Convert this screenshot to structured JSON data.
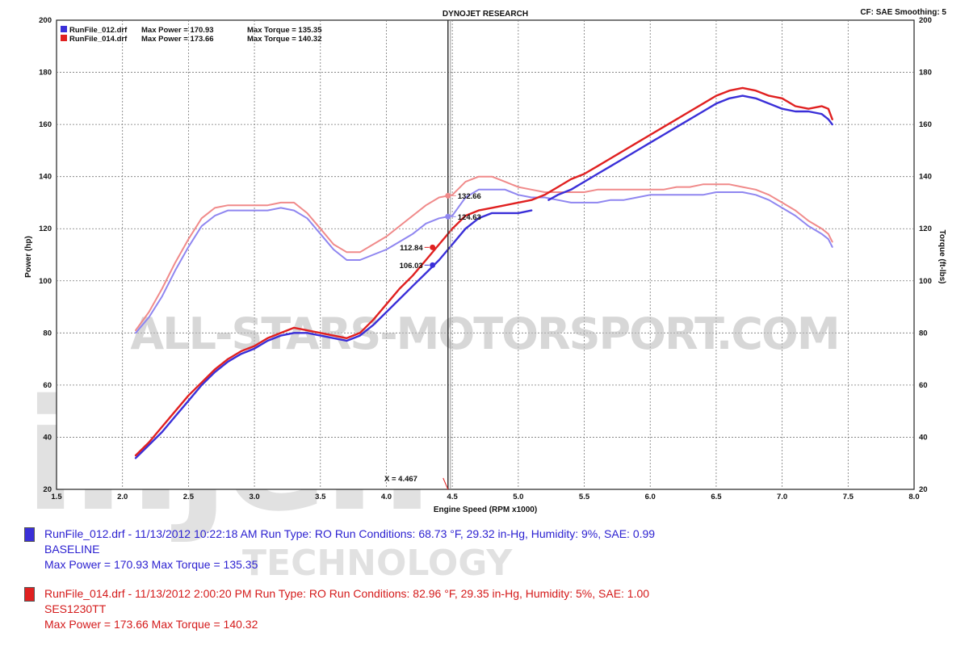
{
  "chart_data": {
    "type": "line",
    "title": "DYNOJET RESEARCH",
    "corner_info": "CF: SAE  Smoothing: 5",
    "xlabel": "Engine Speed (RPM x1000)",
    "ylabel_left": "Power (hp)",
    "ylabel_right": "Torque (ft-lbs)",
    "xlim": [
      1.5,
      8.0
    ],
    "ylim": [
      20,
      200
    ],
    "x_ticks": [
      "1.5",
      "2.0",
      "2.5",
      "3.0",
      "3.5",
      "4.0",
      "4.5",
      "5.0",
      "5.5",
      "6.0",
      "6.5",
      "7.0",
      "7.5",
      "8.0"
    ],
    "y_ticks": [
      "20",
      "40",
      "60",
      "80",
      "100",
      "120",
      "140",
      "160",
      "180",
      "200"
    ],
    "grid": true,
    "legend_top": [
      {
        "file": "RunFile_012.drf",
        "power": "Max Power = 170.93",
        "torque": "Max Torque = 135.35",
        "color": "#3a2fd8"
      },
      {
        "file": "RunFile_014.drf",
        "power": "Max Power = 173.66",
        "torque": "Max Torque = 140.32",
        "color": "#e02020"
      }
    ],
    "cursor": {
      "x": 4.467,
      "label": "X = 4.467"
    },
    "series": [
      {
        "name": "RunFile_012.drf",
        "metric": "power",
        "color": "#3a2fd8",
        "x": [
          2.1,
          2.2,
          2.3,
          2.4,
          2.5,
          2.6,
          2.7,
          2.8,
          2.9,
          3.0,
          3.1,
          3.2,
          3.3,
          3.4,
          3.5,
          3.6,
          3.7,
          3.8,
          3.9,
          4.0,
          4.1,
          4.2,
          4.3,
          4.4,
          4.5,
          4.6,
          4.7,
          4.8,
          4.9,
          5.0,
          5.1,
          null,
          5.23,
          5.3,
          5.4,
          5.5,
          5.6,
          5.7,
          5.8,
          5.9,
          6.0,
          6.1,
          6.2,
          6.3,
          6.4,
          6.5,
          6.6,
          6.7,
          6.8,
          6.9,
          7.0,
          7.1,
          7.2,
          7.3,
          7.35,
          7.38
        ],
        "y": [
          32,
          37,
          42,
          48,
          54,
          60,
          65,
          69,
          72,
          74,
          77,
          79,
          80,
          80,
          79,
          78,
          77,
          79,
          83,
          88,
          93,
          98,
          103,
          108,
          114,
          120,
          124,
          126,
          126,
          126,
          127,
          null,
          131,
          133,
          135,
          138,
          141,
          144,
          147,
          150,
          153,
          156,
          159,
          162,
          165,
          168,
          170,
          171,
          170,
          168,
          166,
          165,
          165,
          164,
          162,
          160
        ]
      },
      {
        "name": "RunFile_014.drf",
        "metric": "power",
        "color": "#e02020",
        "x": [
          2.1,
          2.2,
          2.3,
          2.4,
          2.5,
          2.6,
          2.7,
          2.8,
          2.9,
          3.0,
          3.1,
          3.2,
          3.3,
          3.4,
          3.5,
          3.6,
          3.7,
          3.8,
          3.9,
          4.0,
          4.1,
          4.2,
          4.3,
          4.4,
          4.5,
          4.6,
          4.7,
          4.8,
          4.9,
          5.0,
          5.1,
          5.2,
          5.3,
          5.4,
          5.5,
          5.6,
          5.7,
          5.8,
          5.9,
          6.0,
          6.1,
          6.2,
          6.3,
          6.4,
          6.5,
          6.6,
          6.7,
          6.8,
          6.9,
          7.0,
          7.1,
          7.2,
          7.3,
          7.35,
          7.38
        ],
        "y": [
          33,
          38,
          44,
          50,
          56,
          61,
          66,
          70,
          73,
          75,
          78,
          80,
          82,
          81,
          80,
          79,
          78,
          80,
          85,
          91,
          97,
          102,
          108,
          114,
          120,
          125,
          127,
          128,
          129,
          130,
          131,
          133,
          136,
          139,
          141,
          144,
          147,
          150,
          153,
          156,
          159,
          162,
          165,
          168,
          171,
          173,
          174,
          173,
          171,
          170,
          167,
          166,
          167,
          166,
          162
        ]
      },
      {
        "name": "RunFile_012.drf",
        "metric": "torque",
        "color": "#8f86f0",
        "x": [
          2.1,
          2.2,
          2.3,
          2.4,
          2.5,
          2.6,
          2.7,
          2.8,
          2.9,
          3.0,
          3.1,
          3.2,
          3.3,
          3.4,
          3.5,
          3.6,
          3.7,
          3.8,
          3.9,
          4.0,
          4.1,
          4.2,
          4.3,
          4.4,
          4.5,
          4.6,
          4.7,
          4.8,
          4.9,
          5.0,
          5.1,
          5.2,
          5.3,
          5.4,
          5.5,
          5.6,
          5.7,
          5.8,
          5.9,
          6.0,
          6.1,
          6.2,
          6.3,
          6.4,
          6.5,
          6.6,
          6.7,
          6.8,
          6.9,
          7.0,
          7.1,
          7.2,
          7.3,
          7.35,
          7.38
        ],
        "y": [
          80,
          86,
          94,
          104,
          113,
          121,
          125,
          127,
          127,
          127,
          127,
          128,
          127,
          124,
          118,
          112,
          108,
          108,
          110,
          112,
          115,
          118,
          122,
          124,
          125,
          132,
          135,
          135,
          135,
          133,
          132,
          132,
          131,
          130,
          130,
          130,
          131,
          131,
          132,
          133,
          133,
          133,
          133,
          133,
          134,
          134,
          134,
          133,
          131,
          128,
          125,
          121,
          118,
          116,
          113
        ]
      },
      {
        "name": "RunFile_014.drf",
        "metric": "torque",
        "color": "#f08a8a",
        "x": [
          2.1,
          2.2,
          2.3,
          2.4,
          2.5,
          2.6,
          2.7,
          2.8,
          2.9,
          3.0,
          3.1,
          3.2,
          3.3,
          3.4,
          3.5,
          3.6,
          3.7,
          3.8,
          3.9,
          4.0,
          4.1,
          4.2,
          4.3,
          4.4,
          4.5,
          4.6,
          4.7,
          4.8,
          4.9,
          5.0,
          5.1,
          5.2,
          5.3,
          5.4,
          5.5,
          5.6,
          5.7,
          5.8,
          5.9,
          6.0,
          6.1,
          6.2,
          6.3,
          6.4,
          6.5,
          6.6,
          6.7,
          6.8,
          6.9,
          7.0,
          7.1,
          7.2,
          7.3,
          7.35,
          7.38
        ],
        "y": [
          81,
          88,
          97,
          107,
          116,
          124,
          128,
          129,
          129,
          129,
          129,
          130,
          130,
          126,
          120,
          114,
          111,
          111,
          114,
          117,
          121,
          125,
          129,
          132,
          133,
          138,
          140,
          140,
          138,
          136,
          135,
          134,
          134,
          134,
          134,
          135,
          135,
          135,
          135,
          135,
          135,
          136,
          136,
          137,
          137,
          137,
          136,
          135,
          133,
          130,
          127,
          123,
          120,
          118,
          115
        ]
      }
    ],
    "annotations": [
      {
        "x": 4.467,
        "y": 132.66,
        "label": "132.66",
        "color": "#f08a8a"
      },
      {
        "x": 4.467,
        "y": 124.63,
        "label": "124.63",
        "color": "#8f86f0"
      },
      {
        "x": 4.35,
        "y": 112.84,
        "label": "112.84",
        "color": "#e02020"
      },
      {
        "x": 4.35,
        "y": 106.03,
        "label": "106.03",
        "color": "#3a2fd8"
      }
    ]
  },
  "bottom_legend": [
    {
      "color": "#3a2fd8",
      "line1": "RunFile_012.drf - 11/13/2012 10:22:18 AM  Run Type: RO  Run Conditions: 68.73 °F, 29.32 in-Hg,  Humidity:  9%, SAE: 0.99",
      "line2": "BASELINE",
      "line3": "Max Power = 170.93  Max Torque = 135.35"
    },
    {
      "color": "#e02020",
      "line1": "RunFile_014.drf - 11/13/2012 2:00:20 PM  Run Type: RO  Run Conditions: 82.96 °F, 29.35 in-Hg,  Humidity:  5%, SAE: 1.00",
      "line2": "SES1230TT",
      "line3": "Max Power = 173.66  Max Torque = 140.32"
    }
  ],
  "watermarks": {
    "site": "ALL-STARS-MOTORSPORT.COM",
    "brand": "injen",
    "brand_sub": "TECHNOLOGY"
  }
}
